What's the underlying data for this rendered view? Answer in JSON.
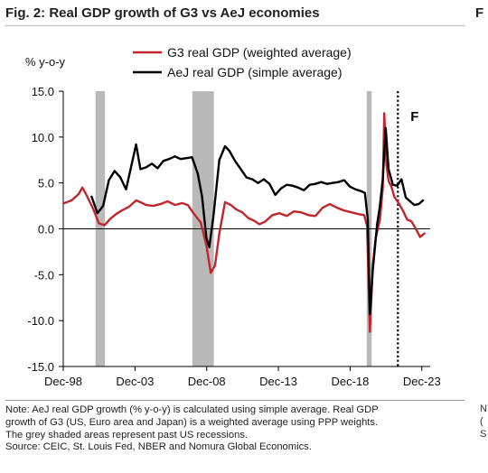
{
  "title": "Fig. 2: Real GDP growth of G3 vs AeJ economies",
  "clipped_right_text": "F",
  "clipped_notes_letters": [
    "N",
    "(",
    "S"
  ],
  "notes": [
    "Note: AeJ real GDP growth (% y-o-y) is calculated using simple average. Real GDP",
    "growth of G3 (US, Euro area and Japan) is a weighted average using PPP weights.",
    "The grey shaded areas represent past US recessions.",
    "Source: CEIC, St. Louis Fed, NBER and Nomura Global Economics."
  ],
  "chart_data": {
    "type": "line",
    "ylabel": "% y-o-y",
    "ylim": [
      -15,
      15
    ],
    "yticks": [
      15,
      10,
      5,
      0,
      -5,
      -10,
      -15
    ],
    "ytick_labels": [
      "15.0",
      "10.0",
      "5.0",
      "0.0",
      "-5.0",
      "-10.0",
      "-15.0"
    ],
    "xlim": [
      1998.92,
      2024.5
    ],
    "xticks": [
      1998.92,
      2003.92,
      2008.92,
      2013.92,
      2018.92,
      2023.92
    ],
    "xtick_labels": [
      "Dec-98",
      "Dec-03",
      "Dec-08",
      "Dec-13",
      "Dec-18",
      "Dec-23"
    ],
    "forecast_start": 2022.25,
    "forecast_label": "F",
    "recessions": [
      [
        2001.17,
        2001.83
      ],
      [
        2007.92,
        2009.42
      ],
      [
        2020.08,
        2020.42
      ]
    ],
    "colors": {
      "g3": "#c0262c",
      "aej": "#000000",
      "recession": "#b9b9b9"
    },
    "series": [
      {
        "name": "G3 real GDP (weighted average)",
        "key": "g3",
        "x": [
          1999.0,
          1999.5,
          2000.0,
          2000.25,
          2000.5,
          2001.0,
          2001.4,
          2001.8,
          2002.2,
          2002.6,
          2003.0,
          2003.5,
          2004.0,
          2004.3,
          2004.7,
          2005.2,
          2005.7,
          2006.2,
          2006.7,
          2007.2,
          2007.6,
          2008.0,
          2008.5,
          2008.9,
          2009.2,
          2009.5,
          2009.8,
          2010.2,
          2010.6,
          2011.0,
          2011.4,
          2011.8,
          2012.2,
          2012.6,
          2013.0,
          2013.5,
          2014.0,
          2014.5,
          2015.0,
          2015.5,
          2016.0,
          2016.5,
          2017.0,
          2017.5,
          2018.0,
          2018.5,
          2019.0,
          2019.5,
          2019.9,
          2020.1,
          2020.3,
          2020.5,
          2020.7,
          2021.0,
          2021.2,
          2021.3,
          2021.45,
          2021.6,
          2021.8,
          2022.0,
          2022.3,
          2022.6,
          2022.9,
          2023.2,
          2023.5,
          2023.8,
          2024.1
        ],
        "y": [
          2.8,
          3.1,
          3.8,
          4.5,
          3.8,
          2.2,
          0.6,
          0.4,
          1.1,
          1.6,
          2.0,
          2.4,
          3.1,
          2.9,
          2.6,
          2.5,
          2.7,
          3.0,
          2.6,
          2.8,
          2.6,
          1.7,
          0.7,
          -1.8,
          -4.8,
          -4.0,
          -0.5,
          2.9,
          2.6,
          2.1,
          1.8,
          1.2,
          0.9,
          0.5,
          0.8,
          1.5,
          1.7,
          1.4,
          1.9,
          1.8,
          1.5,
          1.4,
          2.3,
          2.7,
          2.3,
          2.0,
          1.8,
          1.6,
          1.5,
          0.3,
          -11.2,
          -4.0,
          -1.0,
          1.0,
          4.5,
          12.6,
          7.0,
          5.2,
          4.6,
          3.5,
          2.8,
          2.0,
          1.0,
          0.8,
          0.0,
          -0.9,
          -0.5
        ]
      },
      {
        "name": "AeJ real GDP (simple average)",
        "key": "aej",
        "x": [
          2000.9,
          2001.3,
          2001.7,
          2002.1,
          2002.5,
          2002.9,
          2003.3,
          2003.6,
          2004.0,
          2004.3,
          2004.7,
          2005.1,
          2005.5,
          2005.9,
          2006.3,
          2006.7,
          2007.1,
          2007.5,
          2007.9,
          2008.3,
          2008.6,
          2008.9,
          2009.1,
          2009.4,
          2009.8,
          2010.2,
          2010.5,
          2010.9,
          2011.3,
          2011.7,
          2012.1,
          2012.5,
          2012.9,
          2013.3,
          2013.7,
          2014.1,
          2014.5,
          2014.9,
          2015.3,
          2015.7,
          2016.1,
          2016.5,
          2016.9,
          2017.3,
          2017.7,
          2018.1,
          2018.5,
          2018.9,
          2019.3,
          2019.7,
          2019.95,
          2020.15,
          2020.3,
          2020.5,
          2020.8,
          2021.0,
          2021.2,
          2021.4,
          2021.6,
          2021.9,
          2022.2,
          2022.5,
          2022.8,
          2023.1,
          2023.4,
          2023.7,
          2024.0
        ],
        "y": [
          3.5,
          1.7,
          2.5,
          5.3,
          6.3,
          5.6,
          4.3,
          6.4,
          9.2,
          6.5,
          6.7,
          7.1,
          6.6,
          7.4,
          7.6,
          7.9,
          7.6,
          7.7,
          7.8,
          6.0,
          3.5,
          -1.0,
          -2.0,
          1.5,
          7.5,
          9.0,
          8.5,
          7.4,
          6.5,
          5.6,
          5.4,
          5.0,
          5.4,
          4.9,
          3.7,
          4.4,
          4.8,
          4.7,
          4.5,
          4.2,
          4.8,
          4.9,
          5.1,
          4.9,
          5.0,
          5.1,
          5.3,
          4.6,
          4.3,
          4.1,
          3.9,
          1.0,
          -9.3,
          -4.5,
          0.5,
          2.5,
          5.5,
          11.0,
          6.5,
          4.8,
          4.7,
          5.4,
          3.4,
          3.0,
          2.6,
          2.7,
          3.1
        ]
      }
    ]
  }
}
